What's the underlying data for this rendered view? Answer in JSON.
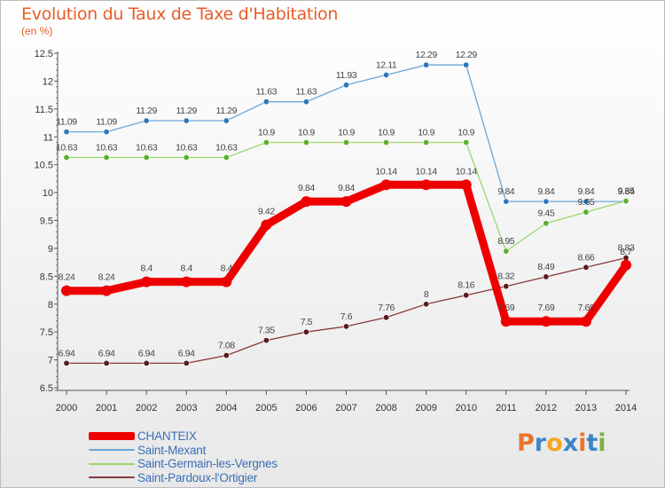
{
  "header": {
    "title": "Evolution du Taux de Taxe d'Habitation",
    "subtitle": "(en %)"
  },
  "logo": {
    "letters": [
      "P",
      "r",
      "o",
      "x",
      "i",
      "t",
      "i"
    ],
    "colors": [
      "#e8762d",
      "#3c86c8",
      "#f5a623",
      "#3c86c8",
      "#e8762d",
      "#3c86c8",
      "#7cb342"
    ]
  },
  "chart_data": {
    "type": "line",
    "title": "Evolution du Taux de Taxe d'Habitation",
    "subtitle": "(en %)",
    "xlabel": "",
    "ylabel": "",
    "ylim": [
      6.5,
      12.5
    ],
    "yticks": [
      "6.5",
      "7",
      "7.5",
      "8",
      "8.5",
      "9",
      "9.5",
      "10",
      "10.5",
      "11",
      "11.5",
      "12",
      "12.5"
    ],
    "x": [
      "2000",
      "2001",
      "2002",
      "2003",
      "2004",
      "2005",
      "2006",
      "2007",
      "2008",
      "2009",
      "2010",
      "2011",
      "2012",
      "2013",
      "2014"
    ],
    "grid": false,
    "legend_position": "bottom-left",
    "series": [
      {
        "name": "CHANTEIX",
        "color": "#ee0000",
        "emphasis": true,
        "values": [
          8.24,
          8.24,
          8.4,
          8.4,
          8.4,
          9.42,
          9.84,
          9.84,
          10.14,
          10.14,
          10.14,
          7.69,
          7.69,
          7.69,
          8.7
        ],
        "labels": [
          "8.24",
          "8.24",
          "8.4",
          "8.4",
          "8.4",
          "9.42",
          "9.84",
          "9.84",
          "10.14",
          "10.14",
          "10.14",
          "7.69",
          "7.69",
          "7.69",
          "8.7"
        ]
      },
      {
        "name": "Saint-Mexant",
        "color": "#6aa6d8",
        "emphasis": false,
        "values": [
          11.09,
          11.09,
          11.29,
          11.29,
          11.29,
          11.63,
          11.63,
          11.93,
          12.11,
          12.29,
          12.29,
          9.84,
          9.84,
          9.84,
          9.84
        ],
        "labels": [
          "11.09",
          "11.09",
          "11.29",
          "11.29",
          "11.29",
          "11.63",
          "11.63",
          "11.93",
          "12.11",
          "12.29",
          "12.29",
          "9.84",
          "9.84",
          "9.84",
          "9.84"
        ]
      },
      {
        "name": "Saint-Germain-les-Vergnes",
        "color": "#9ad86a",
        "emphasis": false,
        "values": [
          10.63,
          10.63,
          10.63,
          10.63,
          10.63,
          10.9,
          10.9,
          10.9,
          10.9,
          10.9,
          10.9,
          8.95,
          9.45,
          9.65,
          9.85
        ],
        "labels": [
          "10.63",
          "10.63",
          "10.63",
          "10.63",
          "10.63",
          "10.9",
          "10.9",
          "10.9",
          "10.9",
          "10.9",
          "10.9",
          "8.95",
          "9.45",
          "9.65",
          "9.85"
        ]
      },
      {
        "name": "Saint-Pardoux-l'Ortigier",
        "color": "#8a3a3a",
        "emphasis": false,
        "values": [
          6.94,
          6.94,
          6.94,
          6.94,
          7.08,
          7.35,
          7.5,
          7.6,
          7.76,
          8,
          8.16,
          8.32,
          8.49,
          8.66,
          8.83
        ],
        "labels": [
          "6.94",
          "6.94",
          "6.94",
          "6.94",
          "7.08",
          "7.35",
          "7.5",
          "7.6",
          "7.76",
          "8",
          "8.16",
          "8.32",
          "8.49",
          "8.66",
          "8.83"
        ]
      }
    ]
  }
}
